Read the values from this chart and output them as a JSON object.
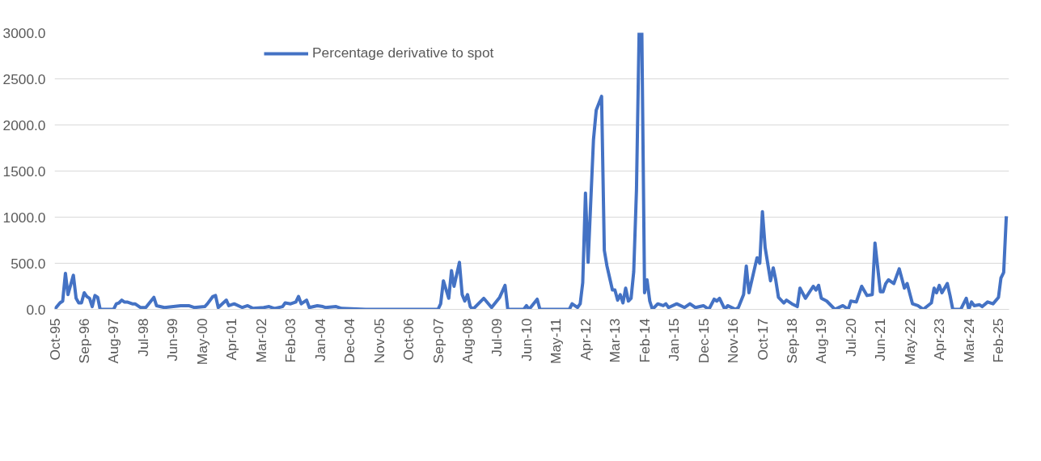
{
  "chart_data": {
    "type": "line",
    "x": [
      "1995-10",
      "1995-12",
      "1996-01",
      "1996-02",
      "1996-03",
      "1996-05",
      "1996-06",
      "1996-07",
      "1996-08",
      "1996-09",
      "1996-10",
      "1996-11",
      "1996-12",
      "1997-01",
      "1997-02",
      "1997-03",
      "1997-08",
      "1997-09",
      "1997-10",
      "1997-11",
      "1997-12",
      "1998-01",
      "1998-03",
      "1998-04",
      "1998-06",
      "1998-08",
      "1998-11",
      "1998-12",
      "1999-03",
      "1999-09",
      "1999-12",
      "2000-02",
      "2000-06",
      "2000-07",
      "2000-09",
      "2000-10",
      "2000-11",
      "2001-02",
      "2001-03",
      "2001-05",
      "2001-08",
      "2001-10",
      "2001-12",
      "2002-04",
      "2002-06",
      "2002-08",
      "2002-11",
      "2002-12",
      "2003-02",
      "2003-04",
      "2003-05",
      "2003-06",
      "2003-08",
      "2003-09",
      "2003-12",
      "2004-02",
      "2004-03",
      "2004-07",
      "2004-09",
      "2005-06",
      "2007-09",
      "2007-10",
      "2007-11",
      "2008-01",
      "2008-02",
      "2008-03",
      "2008-05",
      "2008-06",
      "2008-07",
      "2008-08",
      "2008-09",
      "2008-10",
      "2009-02",
      "2009-05",
      "2009-08",
      "2009-10",
      "2009-11",
      "2010-05",
      "2010-06",
      "2010-07",
      "2010-10",
      "2010-11",
      "2011-10",
      "2011-11",
      "2012-01",
      "2012-02",
      "2012-03",
      "2012-04",
      "2012-05",
      "2012-07",
      "2012-08",
      "2012-10",
      "2012-11",
      "2012-12",
      "2013-01",
      "2013-02",
      "2013-03",
      "2013-04",
      "2013-05",
      "2013-06",
      "2013-07",
      "2013-08",
      "2013-09",
      "2013-10",
      "2013-11",
      "2013-12",
      "2014-01",
      "2014-02",
      "2014-03",
      "2014-04",
      "2014-05",
      "2014-07",
      "2014-09",
      "2014-10",
      "2014-11",
      "2015-02",
      "2015-05",
      "2015-07",
      "2015-09",
      "2015-12",
      "2016-02",
      "2016-04",
      "2016-05",
      "2016-06",
      "2016-08",
      "2016-09",
      "2016-12",
      "2017-01",
      "2017-03",
      "2017-04",
      "2017-05",
      "2017-08",
      "2017-09",
      "2017-10",
      "2017-11",
      "2018-01",
      "2018-02",
      "2018-03",
      "2018-04",
      "2018-06",
      "2018-07",
      "2018-09",
      "2018-11",
      "2018-12",
      "2019-02",
      "2019-05",
      "2019-06",
      "2019-07",
      "2019-08",
      "2019-10",
      "2020-01",
      "2020-04",
      "2020-06",
      "2020-07",
      "2020-09",
      "2020-11",
      "2021-01",
      "2021-03",
      "2021-04",
      "2021-06",
      "2021-07",
      "2021-08",
      "2021-09",
      "2021-11",
      "2022-01",
      "2022-03",
      "2022-04",
      "2022-06",
      "2022-08",
      "2022-10",
      "2023-01",
      "2023-02",
      "2023-03",
      "2023-04",
      "2023-05",
      "2023-07",
      "2023-08",
      "2023-09",
      "2023-12",
      "2024-02",
      "2024-03",
      "2024-04",
      "2024-05",
      "2024-07",
      "2024-08",
      "2024-10",
      "2024-12",
      "2025-02",
      "2025-03",
      "2025-04",
      "2025-05"
    ],
    "series": [
      {
        "name": "Percentage derivative to spot",
        "color": "#4472c4",
        "values": [
          0,
          70,
          90,
          390,
          160,
          370,
          120,
          70,
          70,
          180,
          140,
          120,
          30,
          150,
          130,
          0,
          0,
          60,
          70,
          100,
          80,
          80,
          60,
          60,
          20,
          20,
          130,
          40,
          20,
          40,
          40,
          20,
          30,
          60,
          140,
          150,
          20,
          100,
          40,
          60,
          20,
          40,
          10,
          20,
          30,
          10,
          30,
          70,
          60,
          80,
          140,
          60,
          100,
          20,
          40,
          30,
          20,
          30,
          10,
          0,
          0,
          60,
          310,
          120,
          420,
          250,
          510,
          160,
          90,
          160,
          30,
          0,
          120,
          20,
          130,
          260,
          0,
          0,
          40,
          0,
          110,
          0,
          0,
          60,
          20,
          60,
          290,
          1260,
          510,
          1840,
          2160,
          2310,
          640,
          470,
          340,
          210,
          210,
          100,
          160,
          70,
          230,
          90,
          120,
          410,
          1290,
          3000,
          3000,
          180,
          320,
          90,
          0,
          60,
          40,
          60,
          20,
          60,
          20,
          60,
          20,
          40,
          0,
          110,
          90,
          120,
          0,
          40,
          0,
          20,
          160,
          470,
          180,
          560,
          500,
          1060,
          670,
          310,
          450,
          320,
          130,
          70,
          100,
          60,
          30,
          230,
          120,
          250,
          210,
          260,
          120,
          90,
          0,
          40,
          0,
          90,
          80,
          250,
          150,
          160,
          720,
          190,
          190,
          280,
          320,
          280,
          440,
          230,
          280,
          60,
          40,
          0,
          70,
          230,
          180,
          260,
          180,
          280,
          150,
          0,
          0,
          120,
          0,
          80,
          40,
          50,
          30,
          80,
          60,
          130,
          340,
          400,
          1010
        ]
      }
    ],
    "xlim": [
      "1995-10-01",
      "2025-06-01"
    ],
    "xticks": [
      {
        "value": "1995-10",
        "label": "Oct-95"
      },
      {
        "value": "1996-09",
        "label": "Sep-96"
      },
      {
        "value": "1997-08",
        "label": "Aug-97"
      },
      {
        "value": "1998-07",
        "label": "Jul-98"
      },
      {
        "value": "1999-06",
        "label": "Jun-99"
      },
      {
        "value": "2000-05",
        "label": "May-00"
      },
      {
        "value": "2001-04",
        "label": "Apr-01"
      },
      {
        "value": "2002-03",
        "label": "Mar-02"
      },
      {
        "value": "2003-02",
        "label": "Feb-03"
      },
      {
        "value": "2004-01",
        "label": "Jan-04"
      },
      {
        "value": "2004-12",
        "label": "Dec-04"
      },
      {
        "value": "2005-11",
        "label": "Nov-05"
      },
      {
        "value": "2006-10",
        "label": "Oct-06"
      },
      {
        "value": "2007-09",
        "label": "Sep-07"
      },
      {
        "value": "2008-08",
        "label": "Aug-08"
      },
      {
        "value": "2009-07",
        "label": "Jul-09"
      },
      {
        "value": "2010-06",
        "label": "Jun-10"
      },
      {
        "value": "2011-05",
        "label": "May-11"
      },
      {
        "value": "2012-04",
        "label": "Apr-12"
      },
      {
        "value": "2013-03",
        "label": "Mar-13"
      },
      {
        "value": "2014-02",
        "label": "Feb-14"
      },
      {
        "value": "2015-01",
        "label": "Jan-15"
      },
      {
        "value": "2015-12",
        "label": "Dec-15"
      },
      {
        "value": "2016-11",
        "label": "Nov-16"
      },
      {
        "value": "2017-10",
        "label": "Oct-17"
      },
      {
        "value": "2018-09",
        "label": "Sep-18"
      },
      {
        "value": "2019-08",
        "label": "Aug-19"
      },
      {
        "value": "2020-07",
        "label": "Jul-20"
      },
      {
        "value": "2021-06",
        "label": "Jun-21"
      },
      {
        "value": "2022-05",
        "label": "May-22"
      },
      {
        "value": "2023-04",
        "label": "Apr-23"
      },
      {
        "value": "2024-03",
        "label": "Mar-24"
      },
      {
        "value": "2025-02",
        "label": "Feb-25"
      }
    ],
    "ylim": [
      0,
      3000
    ],
    "yticks": [
      {
        "value": 0,
        "label": "0.0"
      },
      {
        "value": 500,
        "label": "500.0"
      },
      {
        "value": 1000,
        "label": "1000.0"
      },
      {
        "value": 1500,
        "label": "1500.0"
      },
      {
        "value": 2000,
        "label": "2000.0"
      },
      {
        "value": 2500,
        "label": "2500.0"
      },
      {
        "value": 3000,
        "label": "3000.0"
      }
    ],
    "grid": "y",
    "legend": "top",
    "marker": "none",
    "line_style": "solid"
  }
}
